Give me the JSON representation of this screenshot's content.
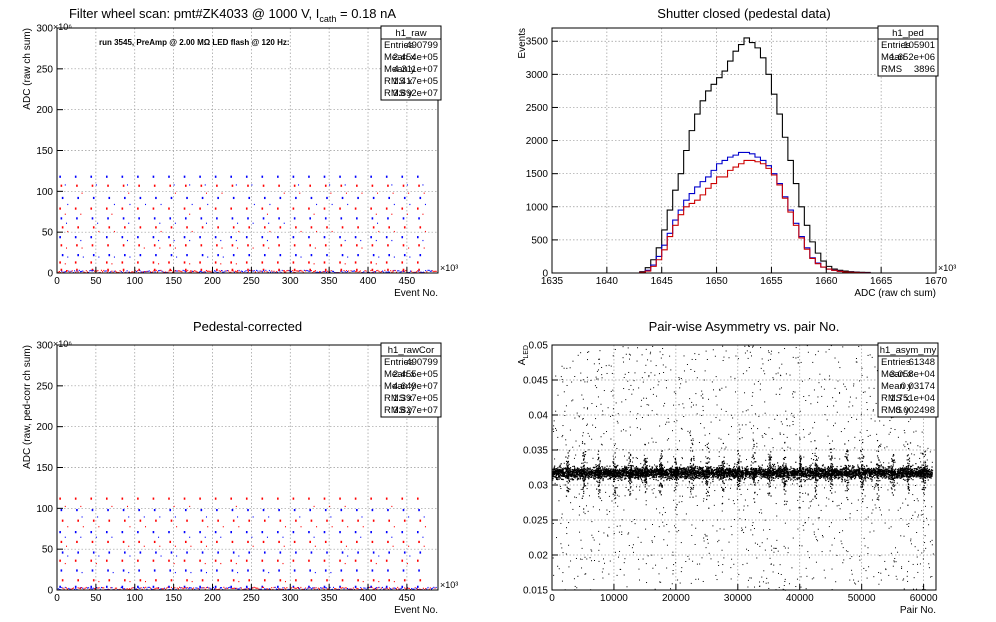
{
  "chart_data": [
    {
      "type": "scatter",
      "title": "Filter wheel scan: pmt#ZK4033 @  1000 V, I",
      "title_sub": "cath",
      "title_suffix": " = 0.18 nA",
      "annotation": "run 3545, PreAmp @ 2.00 MΩ LED flash @  120 Hz:",
      "xlabel": "Event No.",
      "ylabel": "ADC (raw ch sum)",
      "xexp": "×10³",
      "yexp": "×10⁶",
      "xlim": [
        0,
        490
      ],
      "ylim": [
        0,
        300
      ],
      "xticks": [
        0,
        50,
        100,
        150,
        200,
        250,
        300,
        350,
        400,
        450
      ],
      "yticks": [
        0,
        50,
        100,
        150,
        200,
        250,
        300
      ],
      "grid": true,
      "stats_box": {
        "name": "h1_raw",
        "rows": [
          [
            "Entries",
            "490799"
          ],
          [
            "Mean x",
            "2.454e+05"
          ],
          [
            "Mean y",
            "4.311e+07"
          ],
          [
            "RMS x",
            "1.417e+05"
          ],
          [
            "RMS y",
            "3.892e+07"
          ]
        ]
      },
      "pattern": {
        "step_period": 20,
        "first_x": 3,
        "last_x": 472,
        "levels": [
          118,
          107,
          92,
          79,
          67,
          56,
          44,
          34,
          22,
          13,
          4
        ],
        "blue_levels": [
          118,
          92,
          67,
          44,
          22
        ],
        "red_levels": [
          107,
          79,
          56,
          34,
          13,
          4
        ]
      }
    },
    {
      "type": "histogram",
      "title": "Shutter closed (pedestal data)",
      "xlabel": "ADC (raw ch sum)",
      "ylabel": "Events",
      "xexp": "×10³",
      "xlim": [
        1635,
        1670
      ],
      "ylim": [
        0,
        3700
      ],
      "xticks": [
        1635,
        1640,
        1645,
        1650,
        1655,
        1660,
        1665,
        1670
      ],
      "yticks": [
        0,
        500,
        1000,
        1500,
        2000,
        2500,
        3000,
        3500
      ],
      "grid": true,
      "stats_box": {
        "name": "h1_ped",
        "rows": [
          [
            "Entries",
            "105901"
          ],
          [
            "Mean",
            "1.652e+06"
          ],
          [
            "RMS",
            "3896"
          ]
        ]
      },
      "series": [
        {
          "color": "#000000",
          "bin_start": 1643.0,
          "bin_width": 0.5,
          "values": [
            20,
            80,
            200,
            380,
            650,
            950,
            1250,
            1500,
            1850,
            2150,
            2400,
            2600,
            2750,
            2850,
            2950,
            3050,
            3200,
            3350,
            3450,
            3550,
            3480,
            3400,
            3250,
            3000,
            2700,
            2400,
            2050,
            1700,
            1350,
            1000,
            720,
            470,
            300,
            180,
            100,
            60,
            40,
            30,
            20,
            15,
            10,
            8
          ]
        },
        {
          "color": "#0000cc",
          "bin_start": 1643.0,
          "bin_width": 0.5,
          "values": [
            10,
            40,
            120,
            250,
            420,
            600,
            800,
            950,
            1100,
            1200,
            1300,
            1380,
            1450,
            1550,
            1650,
            1700,
            1750,
            1780,
            1820,
            1820,
            1800,
            1750,
            1700,
            1620,
            1500,
            1350,
            1150,
            950,
            750,
            550,
            380,
            230,
            150,
            90,
            60,
            40,
            25,
            15,
            10,
            8,
            5,
            3
          ]
        },
        {
          "color": "#cc0000",
          "bin_start": 1643.0,
          "bin_width": 0.5,
          "values": [
            10,
            30,
            100,
            200,
            350,
            550,
            720,
            880,
            1000,
            1050,
            1100,
            1180,
            1280,
            1350,
            1450,
            1450,
            1550,
            1600,
            1650,
            1700,
            1700,
            1680,
            1650,
            1580,
            1480,
            1330,
            1130,
            920,
            720,
            530,
            360,
            220,
            140,
            90,
            60,
            40,
            25,
            15,
            10,
            8,
            5,
            3
          ]
        }
      ]
    },
    {
      "type": "scatter",
      "title": "Pedestal-corrected",
      "xlabel": "Event No.",
      "ylabel": "ADC (raw, ped-corr ch sum)",
      "xexp": "×10³",
      "yexp": "×10⁶",
      "xlim": [
        0,
        490
      ],
      "ylim": [
        0,
        300
      ],
      "xticks": [
        0,
        50,
        100,
        150,
        200,
        250,
        300,
        350,
        400,
        450
      ],
      "yticks": [
        0,
        50,
        100,
        150,
        200,
        250,
        300
      ],
      "grid": true,
      "stats_box": {
        "name": "h1_rawCor",
        "rows": [
          [
            "Entries",
            "490799"
          ],
          [
            "Mean x",
            "2.455e+05"
          ],
          [
            "Mean y",
            "4.649e+07"
          ],
          [
            "RMS x",
            "1.397e+05"
          ],
          [
            "RMS y",
            "3.827e+07"
          ]
        ]
      },
      "pattern": {
        "step_period": 20,
        "first_x": 3,
        "last_x": 472,
        "levels": [
          112,
          98,
          85,
          71,
          59,
          46,
          36,
          24,
          12,
          4
        ],
        "blue_levels": [
          98,
          71,
          46,
          24,
          4
        ],
        "red_levels": [
          112,
          85,
          59,
          36,
          12
        ]
      }
    },
    {
      "type": "scatter",
      "title": "Pair-wise Asymmetry vs. pair No.",
      "xlabel": "Pair No.",
      "ylabel": "A",
      "ylabel_sub": "LED",
      "xlim": [
        0,
        62000
      ],
      "ylim": [
        0.015,
        0.05
      ],
      "xticks": [
        0,
        10000,
        20000,
        30000,
        40000,
        50000,
        60000
      ],
      "yticks": [
        0.015,
        0.02,
        0.025,
        0.03,
        0.035,
        0.04,
        0.045,
        0.05
      ],
      "grid": true,
      "stats_box": {
        "name": "h1_asym_my",
        "rows": [
          [
            "Entries",
            "61348"
          ],
          [
            "Mean x",
            "3.058e+04"
          ],
          [
            "Mean y",
            "0.03174"
          ],
          [
            "RMS x",
            "1.751e+04"
          ],
          [
            "RMS y",
            "0.002498"
          ]
        ]
      },
      "band": {
        "center": 0.0318,
        "halfwidth": 0.0009,
        "spike_period": 2500,
        "first_spike": 2500
      }
    }
  ],
  "colors": {
    "axis": "#000000",
    "grid": "#999999",
    "blue": "#0000ff",
    "red": "#ff0000"
  }
}
